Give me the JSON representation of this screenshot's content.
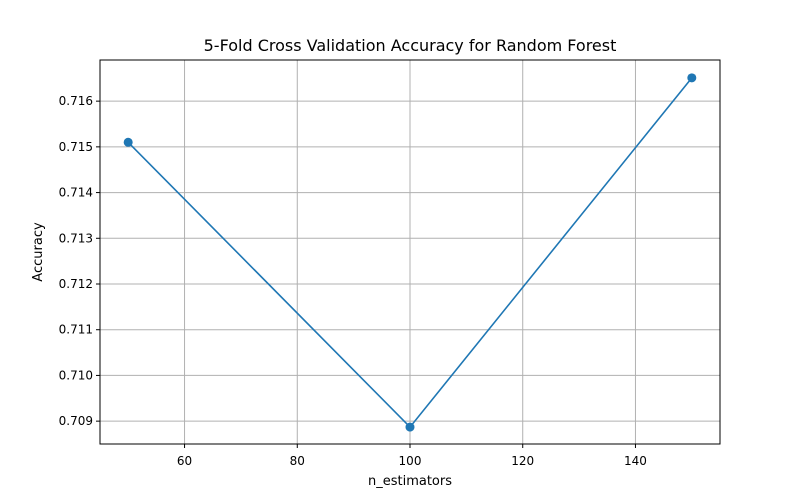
{
  "chart_data": {
    "type": "line",
    "title": "5-Fold Cross Validation Accuracy for Random Forest",
    "xlabel": "n_estimators",
    "ylabel": "Accuracy",
    "x": [
      50,
      100,
      150
    ],
    "series": [
      {
        "values": [
          0.7151,
          0.70887,
          0.71651
        ],
        "color": "#1f77b4",
        "marker": "circle"
      }
    ],
    "xlim": [
      45,
      155
    ],
    "ylim": [
      0.7085,
      0.7169
    ],
    "xticks": [
      60,
      80,
      100,
      120,
      140
    ],
    "yticks": [
      0.709,
      0.71,
      0.711,
      0.712,
      0.713,
      0.714,
      0.715,
      0.716
    ],
    "xtick_labels": [
      "60",
      "80",
      "100",
      "120",
      "140"
    ],
    "ytick_labels": [
      "0.709",
      "0.710",
      "0.711",
      "0.712",
      "0.713",
      "0.714",
      "0.715",
      "0.716"
    ],
    "grid": true,
    "grid_color": "#b0b0b0"
  }
}
